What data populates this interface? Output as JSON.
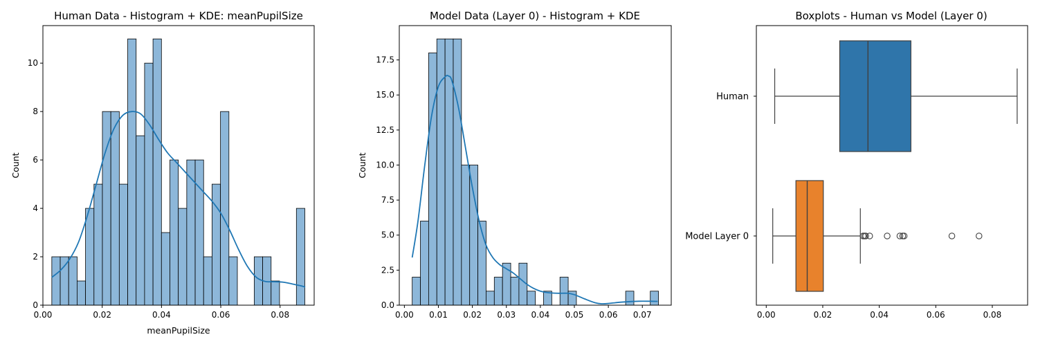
{
  "colors": {
    "hist_fill": "#8db7d9",
    "hist_edge": "#000000",
    "kde_line": "#1f77b4",
    "box_human": "#2f75aa",
    "box_model": "#e8822c",
    "box_line": "#404040"
  },
  "chart_data": [
    {
      "type": "bar",
      "subtype": "histogram+kde",
      "title": "Human Data - Histogram + KDE: meanPupilSize",
      "xlabel": "meanPupilSize",
      "ylabel": "Count",
      "xlim": [
        0.0,
        0.0915
      ],
      "ylim": [
        0,
        11.55
      ],
      "xticks": [
        0.0,
        0.02,
        0.04,
        0.06,
        0.08
      ],
      "xtick_labels": [
        "0.00",
        "0.02",
        "0.04",
        "0.06",
        "0.08"
      ],
      "yticks": [
        0,
        2,
        4,
        6,
        8,
        10
      ],
      "ytick_labels": [
        "0",
        "2",
        "4",
        "6",
        "8",
        "10"
      ],
      "bin_start": 0.003,
      "bin_width": 0.002845,
      "counts": [
        2,
        2,
        2,
        1,
        4,
        5,
        8,
        8,
        5,
        11,
        7,
        10,
        11,
        3,
        6,
        4,
        6,
        6,
        2,
        5,
        8,
        2,
        0,
        0,
        2,
        2,
        1,
        0,
        0,
        4
      ],
      "kde": {
        "x": [
          0.003,
          0.006,
          0.009,
          0.012,
          0.015,
          0.018,
          0.021,
          0.024,
          0.027,
          0.03,
          0.033,
          0.036,
          0.039,
          0.042,
          0.045,
          0.048,
          0.051,
          0.054,
          0.057,
          0.06,
          0.063,
          0.066,
          0.069,
          0.072,
          0.075,
          0.078,
          0.081,
          0.084,
          0.087,
          0.0885
        ],
        "y": [
          1.15,
          1.45,
          1.9,
          2.6,
          3.7,
          5.0,
          6.3,
          7.3,
          7.85,
          8.0,
          7.9,
          7.45,
          6.85,
          6.3,
          5.9,
          5.5,
          5.1,
          4.7,
          4.3,
          3.8,
          3.1,
          2.3,
          1.6,
          1.15,
          0.98,
          0.97,
          0.95,
          0.88,
          0.8,
          0.75
        ]
      }
    },
    {
      "type": "bar",
      "subtype": "histogram+kde",
      "title": "Model Data (Layer 0) - Histogram + KDE",
      "xlabel": "",
      "ylabel": "Count",
      "xlim": [
        -0.0015,
        0.0785
      ],
      "ylim": [
        0,
        19.95
      ],
      "xticks": [
        0.0,
        0.01,
        0.02,
        0.03,
        0.04,
        0.05,
        0.06,
        0.07
      ],
      "xtick_labels": [
        "0.00",
        "0.01",
        "0.02",
        "0.03",
        "0.04",
        "0.05",
        "0.06",
        "0.07"
      ],
      "yticks": [
        0,
        2.5,
        5,
        7.5,
        10,
        12.5,
        15,
        17.5
      ],
      "ytick_labels": [
        "0.0",
        "2.5",
        "5.0",
        "7.5",
        "10.0",
        "12.5",
        "15.0",
        "17.5"
      ],
      "bin_start": 0.0023,
      "bin_width": 0.002415,
      "counts": [
        2,
        6,
        18,
        19,
        19,
        19,
        10,
        10,
        6,
        1,
        2,
        3,
        2,
        3,
        1,
        0,
        1,
        0,
        2,
        1,
        0,
        0,
        0,
        0,
        0,
        0,
        1,
        0,
        0,
        1
      ],
      "kde": {
        "x": [
          0.0023,
          0.004,
          0.006,
          0.008,
          0.01,
          0.012,
          0.013,
          0.014,
          0.016,
          0.018,
          0.02,
          0.022,
          0.024,
          0.026,
          0.028,
          0.03,
          0.032,
          0.034,
          0.036,
          0.038,
          0.04,
          0.042,
          0.045,
          0.048,
          0.05,
          0.053,
          0.056,
          0.058,
          0.06,
          0.063,
          0.066,
          0.069,
          0.072,
          0.0745
        ],
        "y": [
          3.4,
          6.0,
          10.0,
          13.5,
          15.6,
          16.3,
          16.35,
          16.0,
          14.0,
          11.2,
          8.4,
          6.0,
          4.3,
          3.4,
          2.9,
          2.6,
          2.3,
          1.9,
          1.5,
          1.2,
          1.0,
          0.9,
          0.85,
          0.85,
          0.75,
          0.45,
          0.18,
          0.1,
          0.12,
          0.2,
          0.25,
          0.28,
          0.28,
          0.27
        ]
      }
    },
    {
      "type": "box",
      "title": "Boxplots - Human vs Model (Layer 0)",
      "xlabel": "",
      "ylabel": "",
      "xlim": [
        -0.0035,
        0.0925
      ],
      "xticks": [
        0.0,
        0.02,
        0.04,
        0.06,
        0.08
      ],
      "xtick_labels": [
        "0.00",
        "0.02",
        "0.04",
        "0.06",
        "0.08"
      ],
      "categories": [
        "Human",
        "Model Layer 0"
      ],
      "boxes": [
        {
          "name": "Human",
          "whisker_low": 0.003,
          "q1": 0.026,
          "median": 0.036,
          "q3": 0.0512,
          "whisker_high": 0.0888,
          "outliers": []
        },
        {
          "name": "Model Layer 0",
          "whisker_low": 0.0023,
          "q1": 0.0105,
          "median": 0.0145,
          "q3": 0.0202,
          "whisker_high": 0.0333,
          "outliers": [
            0.0343,
            0.0348,
            0.0352,
            0.0366,
            0.0428,
            0.0473,
            0.0483,
            0.0488,
            0.0657,
            0.0753
          ]
        }
      ]
    }
  ]
}
